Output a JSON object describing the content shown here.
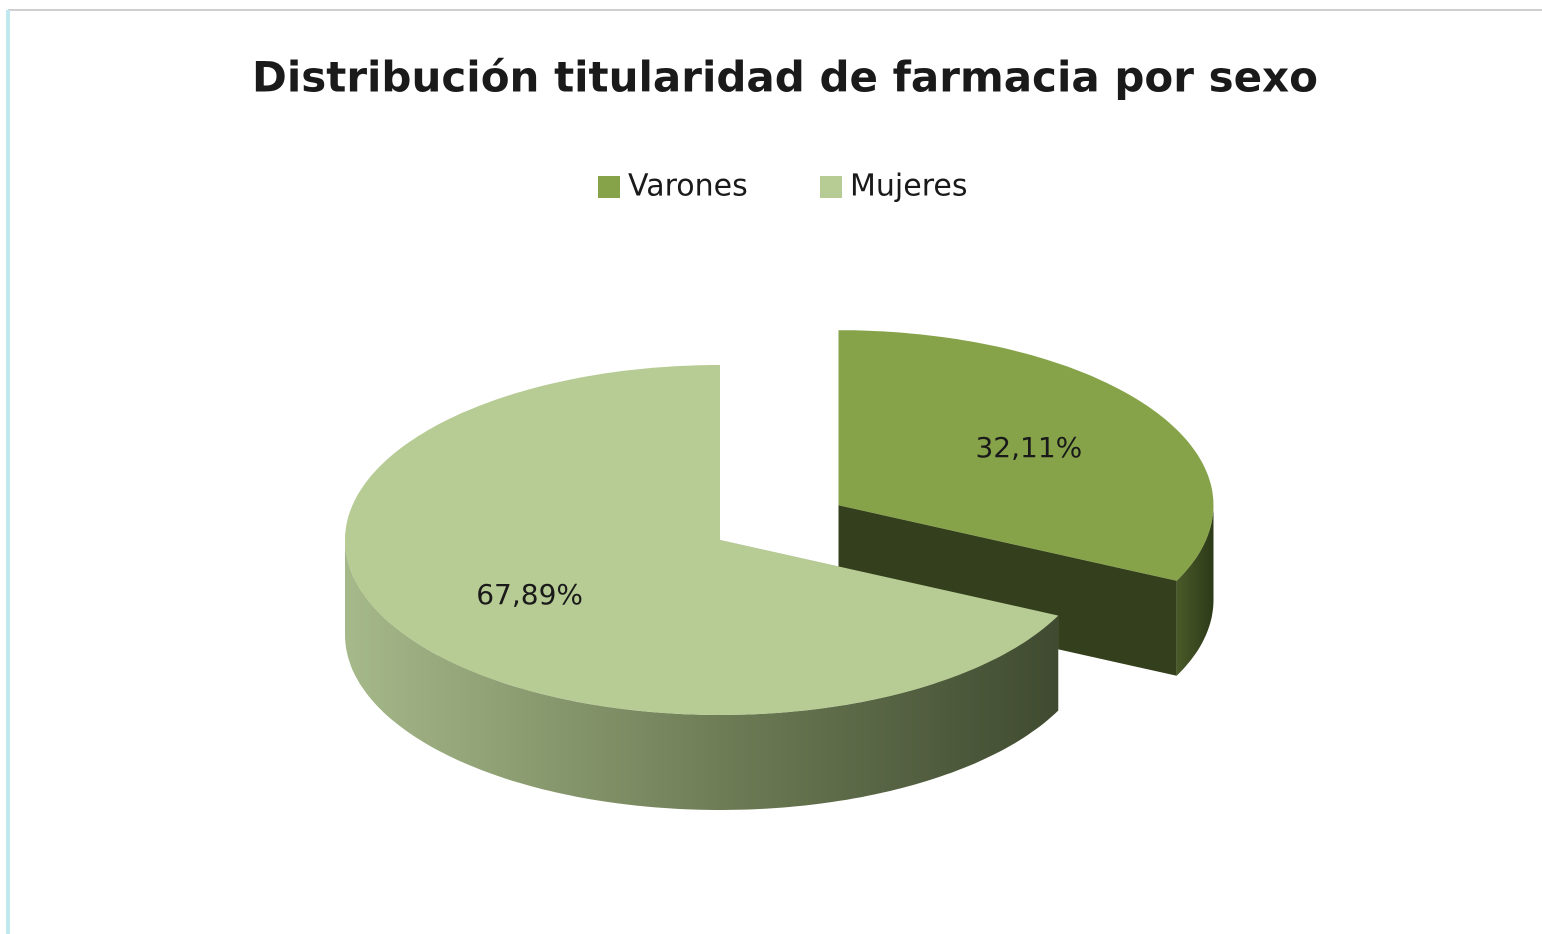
{
  "chart_data": {
    "type": "pie3d",
    "title": "Distribución titularidad de farmacia por sexo",
    "categories": [
      "Varones",
      "Mujeres"
    ],
    "values": [
      32.11,
      67.89
    ],
    "value_labels": [
      "32,11%",
      "67,89%"
    ],
    "colors": [
      "#86a34a",
      "#b7cc94"
    ],
    "legend": "top",
    "exploded": [
      true,
      false
    ]
  }
}
